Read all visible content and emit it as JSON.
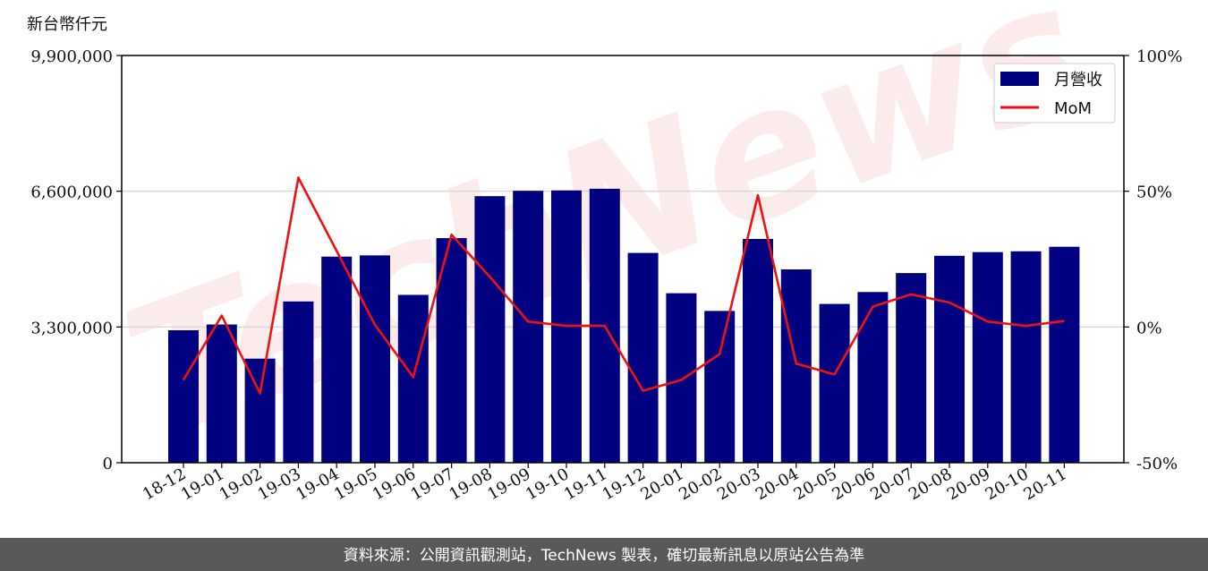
{
  "chart_data": {
    "type": "bar",
    "y_unit_label": "新台幣仟元",
    "categories": [
      "18-12",
      "19-01",
      "19-02",
      "19-03",
      "19-04",
      "19-05",
      "19-06",
      "19-07",
      "19-08",
      "19-09",
      "19-10",
      "19-11",
      "19-12",
      "20-01",
      "20-02",
      "20-03",
      "20-04",
      "20-05",
      "20-06",
      "20-07",
      "20-08",
      "20-09",
      "20-10",
      "20-11"
    ],
    "series": [
      {
        "name": "月營收",
        "kind": "bar",
        "axis": "left",
        "color": "#000080",
        "values": [
          3220000,
          3360000,
          2530000,
          3920000,
          5010000,
          5040000,
          4080000,
          5460000,
          6480000,
          6610000,
          6620000,
          6660000,
          5100000,
          4120000,
          3690000,
          5440000,
          4700000,
          3860000,
          4150000,
          4610000,
          5030000,
          5120000,
          5140000,
          5250000
        ]
      },
      {
        "name": "MoM",
        "kind": "line",
        "axis": "right",
        "color": "#ee1111",
        "values": [
          -19.5,
          4.2,
          -24.5,
          55.0,
          28.0,
          0.8,
          -18.5,
          34.0,
          18.5,
          2.0,
          0.4,
          0.4,
          -23.5,
          -19.5,
          -10.0,
          48.5,
          -13.5,
          -17.5,
          7.5,
          12.0,
          9.0,
          2.0,
          0.4,
          2.2
        ]
      }
    ],
    "y_left": {
      "min": 0,
      "max": 9900000,
      "ticks": [
        0,
        3300000,
        6600000,
        9900000
      ],
      "tick_labels": [
        "0",
        "3,300,000",
        "6,600,000",
        "9,900,000"
      ]
    },
    "y_right": {
      "min": -50,
      "max": 100,
      "ticks": [
        -50,
        0,
        50,
        100
      ],
      "tick_labels": [
        "-50%",
        "0%",
        "50%",
        "100%"
      ]
    },
    "grid": "horizontal",
    "legend": "top-right",
    "watermark": "TechNews",
    "footer": "資料來源：公開資訊觀測站，TechNews 製表，確切最新訊息以原站公告為準"
  }
}
